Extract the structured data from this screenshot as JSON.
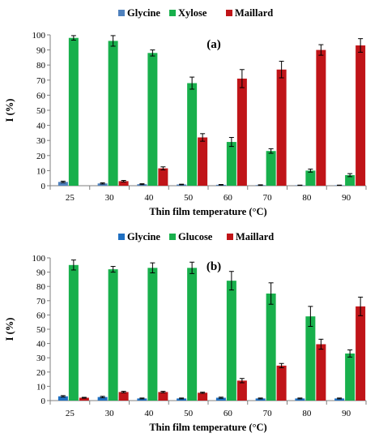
{
  "chart_data": [
    {
      "type": "bar",
      "panel_label": "(a)",
      "xlabel": "Thin film temperature (°C)",
      "ylabel": "I (%)",
      "ylim": [
        0,
        100
      ],
      "yticks": [
        0,
        10,
        20,
        30,
        40,
        50,
        60,
        70,
        80,
        90,
        100
      ],
      "grid": false,
      "legend_position": "top",
      "error_bars": true,
      "categories": [
        "25",
        "30",
        "40",
        "50",
        "60",
        "70",
        "80",
        "90"
      ],
      "series": [
        {
          "name": "Glycine",
          "color": "#4f81bd",
          "values": [
            2.5,
            1.5,
            1.0,
            0.8,
            0.6,
            0.4,
            0.3,
            0.3
          ],
          "errors": [
            0.5,
            0.4,
            0.3,
            0.2,
            0.2,
            0.2,
            0.1,
            0.1
          ]
        },
        {
          "name": "Xylose",
          "color": "#18b04c",
          "values": [
            98,
            96,
            88,
            68,
            29,
            23,
            10,
            7
          ],
          "errors": [
            1.5,
            3.5,
            2.0,
            4.0,
            3.0,
            1.5,
            1.0,
            1.0
          ]
        },
        {
          "name": "Maillard",
          "color": "#c01418",
          "values": [
            0,
            3,
            11.5,
            32,
            71,
            77,
            90,
            93
          ],
          "errors": [
            0,
            0.5,
            1.0,
            2.5,
            6.0,
            5.5,
            3.5,
            4.5
          ]
        }
      ]
    },
    {
      "type": "bar",
      "panel_label": "(b)",
      "xlabel": "Thin film temperature (°C)",
      "ylabel": "I (%)",
      "ylim": [
        0,
        100
      ],
      "yticks": [
        0,
        10,
        20,
        30,
        40,
        50,
        60,
        70,
        80,
        90,
        100
      ],
      "grid": false,
      "legend_position": "top",
      "error_bars": true,
      "categories": [
        "25",
        "30",
        "40",
        "50",
        "60",
        "70",
        "80",
        "90"
      ],
      "series": [
        {
          "name": "Glycine",
          "color": "#1f6fc1",
          "values": [
            3,
            2.5,
            1.5,
            1.5,
            2,
            1.5,
            1.5,
            1.5
          ],
          "errors": [
            0.5,
            0.5,
            0.3,
            0.3,
            0.4,
            0.3,
            0.3,
            0.3
          ]
        },
        {
          "name": "Glucose",
          "color": "#18b04c",
          "values": [
            95,
            92,
            93,
            93,
            84,
            75,
            59,
            33
          ],
          "errors": [
            3.5,
            2.0,
            3.5,
            4.0,
            6.5,
            7.5,
            7.0,
            2.5
          ]
        },
        {
          "name": "Maillard",
          "color": "#c01418",
          "values": [
            2,
            6,
            6,
            5.5,
            14,
            24.5,
            39.5,
            66
          ],
          "errors": [
            0.3,
            0.5,
            0.5,
            0.4,
            1.5,
            1.5,
            3.5,
            6.5
          ]
        }
      ]
    }
  ]
}
